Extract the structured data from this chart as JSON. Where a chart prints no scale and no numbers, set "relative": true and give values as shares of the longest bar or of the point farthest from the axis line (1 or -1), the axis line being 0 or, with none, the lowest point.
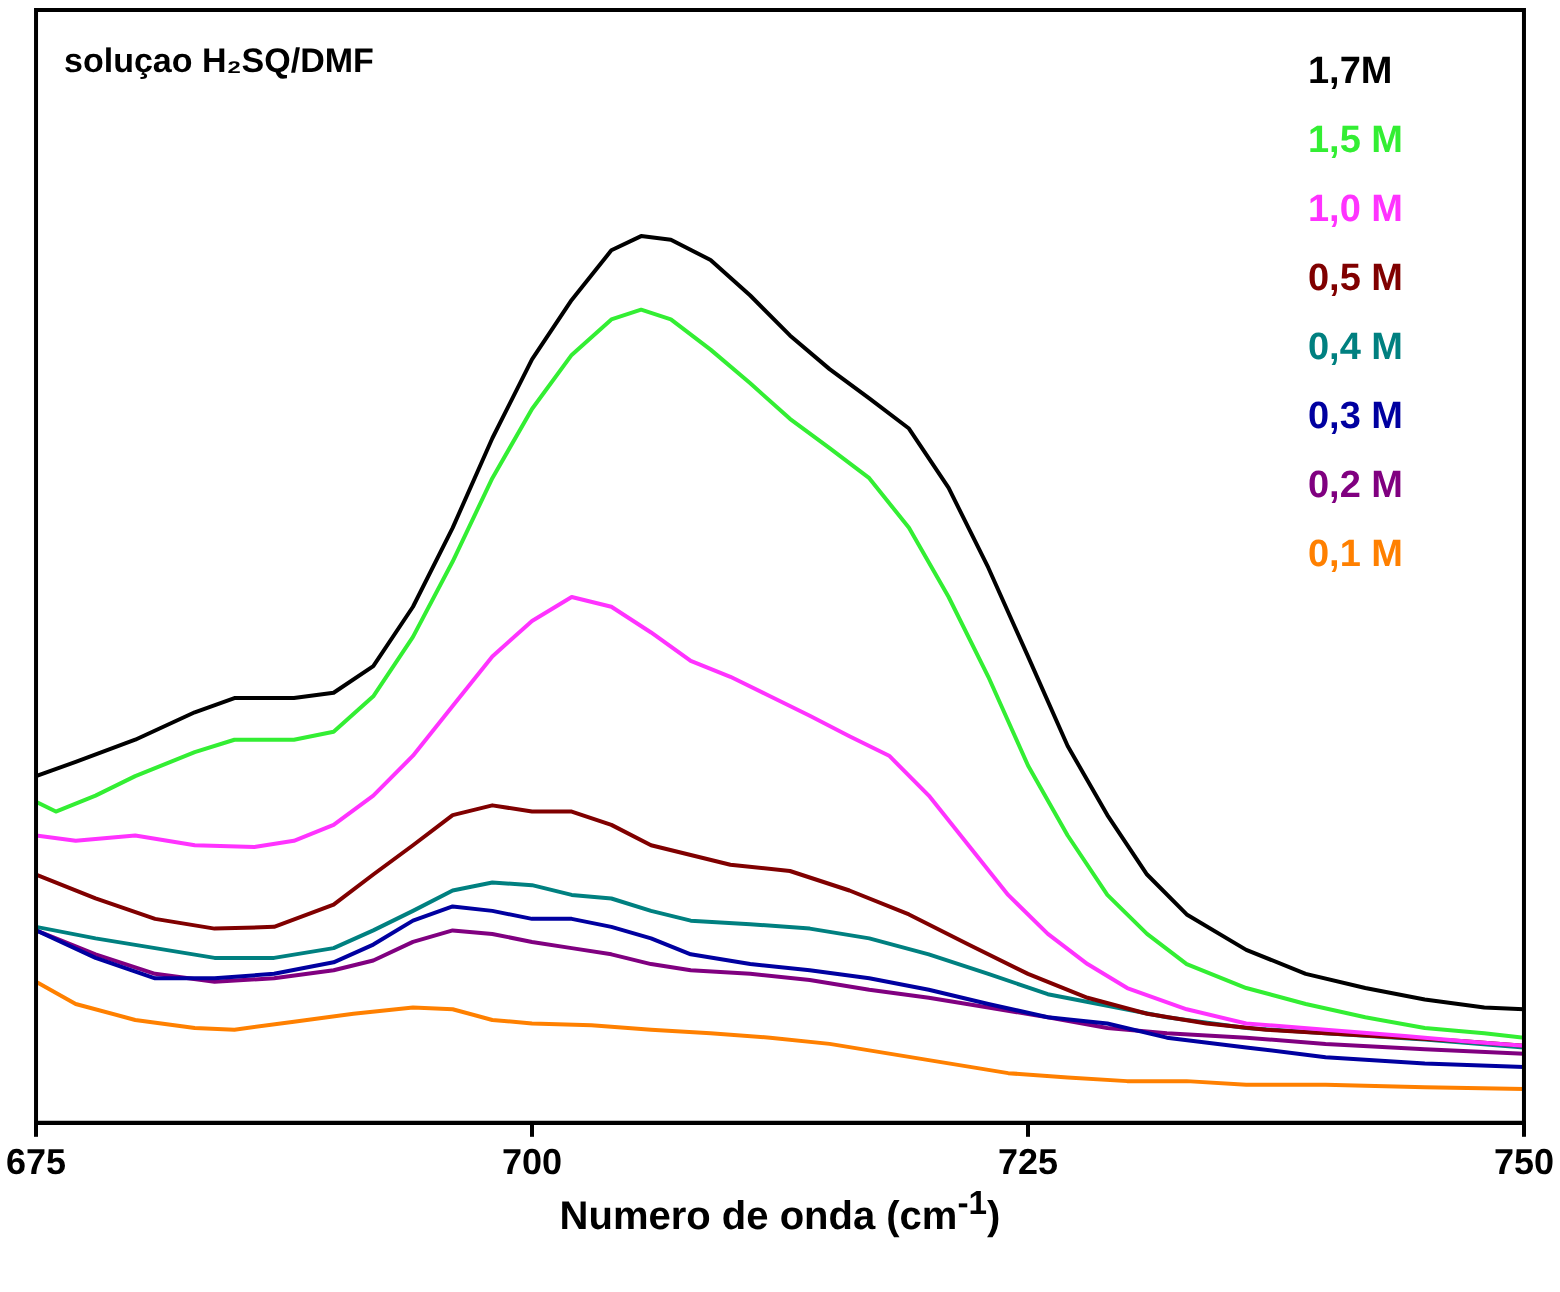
{
  "chart_data": {
    "type": "line",
    "title": "soluçao H₂SQ/DMF",
    "xlabel": "Numero de onda (cm$^{-1}$)",
    "relative": true,
    "xlim": [
      675,
      750
    ],
    "xticks": [
      675,
      700,
      725,
      750
    ],
    "grid": false,
    "legend": "top right",
    "marker": "none",
    "line_style": "solid",
    "series": [
      {
        "name": "1,7M",
        "color": "#000000",
        "x": [
          675,
          677,
          680,
          683,
          685,
          688,
          690,
          692,
          694,
          696,
          698,
          700,
          702,
          704,
          705.5,
          707,
          709,
          711,
          713,
          715,
          717,
          719,
          721,
          723,
          725,
          727,
          729,
          731,
          733,
          736,
          739,
          742,
          745,
          748,
          750
        ],
        "values": [
          0.391,
          0.407,
          0.432,
          0.463,
          0.479,
          0.479,
          0.485,
          0.515,
          0.582,
          0.671,
          0.772,
          0.861,
          0.928,
          0.984,
          1,
          0.996,
          0.973,
          0.933,
          0.888,
          0.85,
          0.817,
          0.783,
          0.716,
          0.626,
          0.526,
          0.425,
          0.347,
          0.28,
          0.235,
          0.195,
          0.168,
          0.152,
          0.139,
          0.13,
          0.128
        ]
      },
      {
        "name": "1,5 M",
        "color": "#33ee33",
        "x": [
          675,
          676,
          678,
          680,
          683,
          685,
          688,
          690,
          692,
          694,
          696,
          698,
          700,
          702,
          704,
          705.5,
          707,
          709,
          711,
          713,
          715,
          717,
          719,
          721,
          723,
          725,
          727,
          729,
          731,
          733,
          736,
          739,
          742,
          745,
          748,
          750
        ],
        "values": [
          0.362,
          0.351,
          0.369,
          0.391,
          0.418,
          0.432,
          0.432,
          0.441,
          0.481,
          0.548,
          0.633,
          0.727,
          0.805,
          0.866,
          0.906,
          0.917,
          0.906,
          0.872,
          0.834,
          0.794,
          0.761,
          0.727,
          0.671,
          0.593,
          0.503,
          0.403,
          0.324,
          0.257,
          0.213,
          0.179,
          0.152,
          0.134,
          0.119,
          0.107,
          0.101,
          0.096
        ]
      },
      {
        "name": "1,0 M",
        "color": "#ff33ff",
        "x": [
          675,
          677,
          680,
          683,
          686,
          688,
          690,
          692,
          694,
          696,
          698,
          700,
          702,
          704,
          706,
          708,
          710,
          712,
          714,
          716,
          718,
          720,
          722,
          724,
          726,
          728,
          730,
          733,
          736,
          740,
          744,
          747,
          750
        ],
        "values": [
          0.324,
          0.318,
          0.324,
          0.313,
          0.311,
          0.318,
          0.336,
          0.369,
          0.414,
          0.47,
          0.526,
          0.566,
          0.593,
          0.582,
          0.553,
          0.521,
          0.503,
          0.481,
          0.459,
          0.436,
          0.414,
          0.369,
          0.313,
          0.257,
          0.213,
          0.179,
          0.152,
          0.128,
          0.112,
          0.105,
          0.098,
          0.092,
          0.087
        ]
      },
      {
        "name": "0,5 M",
        "color": "#800000",
        "x": [
          675,
          678,
          681,
          684,
          687,
          690,
          692,
          694,
          696,
          698,
          700,
          702,
          704,
          706,
          708,
          710,
          713,
          716,
          719,
          722,
          725,
          728,
          731,
          734,
          737,
          740,
          744,
          747,
          750
        ],
        "values": [
          0.28,
          0.253,
          0.23,
          0.219,
          0.221,
          0.246,
          0.28,
          0.313,
          0.347,
          0.358,
          0.351,
          0.351,
          0.336,
          0.313,
          0.302,
          0.291,
          0.284,
          0.262,
          0.235,
          0.201,
          0.168,
          0.141,
          0.123,
          0.112,
          0.105,
          0.101,
          0.096,
          0.092,
          0.087
        ]
      },
      {
        "name": "0,4 M",
        "color": "#008080",
        "x": [
          675,
          678,
          681,
          684,
          687,
          690,
          692,
          694,
          696,
          698,
          700,
          702,
          704,
          706,
          708,
          711,
          714,
          717,
          720,
          723,
          726,
          729,
          732,
          736,
          740,
          745,
          750
        ],
        "values": [
          0.221,
          0.208,
          0.197,
          0.186,
          0.186,
          0.197,
          0.217,
          0.239,
          0.262,
          0.271,
          0.268,
          0.257,
          0.253,
          0.239,
          0.228,
          0.224,
          0.219,
          0.208,
          0.19,
          0.168,
          0.145,
          0.132,
          0.119,
          0.107,
          0.101,
          0.094,
          0.085
        ]
      },
      {
        "name": "0,3 M",
        "color": "#0000a0",
        "x": [
          675,
          678,
          681,
          684,
          687,
          690,
          692,
          694,
          696,
          698,
          700,
          702,
          704,
          706,
          708,
          711,
          714,
          717,
          720,
          723,
          726,
          729,
          732,
          736,
          740,
          745,
          750
        ],
        "values": [
          0.217,
          0.186,
          0.163,
          0.163,
          0.168,
          0.181,
          0.201,
          0.228,
          0.244,
          0.239,
          0.23,
          0.23,
          0.221,
          0.208,
          0.19,
          0.179,
          0.172,
          0.163,
          0.15,
          0.134,
          0.119,
          0.112,
          0.096,
          0.085,
          0.074,
          0.067,
          0.063
        ]
      },
      {
        "name": "0,2 M",
        "color": "#800080",
        "x": [
          675,
          678,
          681,
          684,
          687,
          690,
          692,
          694,
          696,
          698,
          700,
          702,
          704,
          706,
          708,
          711,
          714,
          717,
          720,
          723,
          726,
          729,
          732,
          736,
          740,
          745,
          750
        ],
        "values": [
          0.217,
          0.19,
          0.168,
          0.159,
          0.163,
          0.172,
          0.183,
          0.204,
          0.217,
          0.213,
          0.204,
          0.197,
          0.19,
          0.179,
          0.172,
          0.168,
          0.161,
          0.15,
          0.141,
          0.13,
          0.119,
          0.107,
          0.101,
          0.096,
          0.089,
          0.083,
          0.078
        ]
      },
      {
        "name": "0,1 M",
        "color": "#ff8000",
        "x": [
          675,
          677,
          680,
          683,
          685,
          688,
          691,
          694,
          696,
          698,
          700,
          703,
          706,
          709,
          712,
          715,
          718,
          721,
          724,
          727,
          730,
          733,
          736,
          740,
          745,
          750
        ],
        "values": [
          0.159,
          0.134,
          0.116,
          0.107,
          0.105,
          0.114,
          0.123,
          0.13,
          0.128,
          0.116,
          0.112,
          0.11,
          0.105,
          0.101,
          0.096,
          0.089,
          0.078,
          0.067,
          0.056,
          0.051,
          0.047,
          0.047,
          0.043,
          0.043,
          0.04,
          0.038
        ]
      }
    ]
  }
}
